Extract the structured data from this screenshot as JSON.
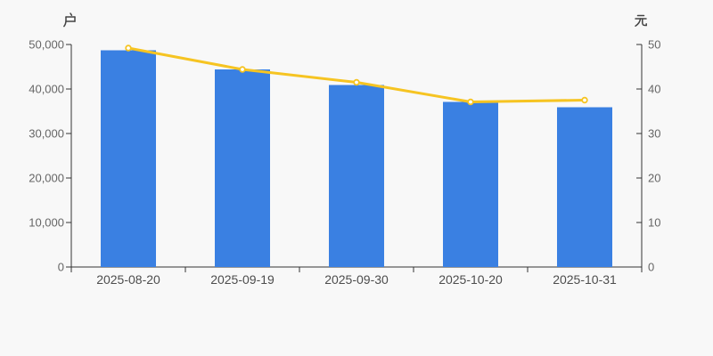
{
  "chart_data": {
    "type": "bar",
    "categories": [
      "2025-08-20",
      "2025-09-19",
      "2025-09-30",
      "2025-10-20",
      "2025-10-31"
    ],
    "series": [
      {
        "name": "bar-series",
        "type": "bar",
        "y_axis": "left",
        "values": [
          48700,
          44400,
          40900,
          37100,
          35900
        ],
        "color": "#3a80e2"
      },
      {
        "name": "line-series",
        "type": "line",
        "y_axis": "right",
        "values": [
          49.2,
          44.4,
          41.5,
          37.1,
          37.5
        ],
        "color": "#f6c422",
        "marker_fill": "#ffffff"
      }
    ],
    "left_axis": {
      "unit": "户",
      "min": 0,
      "max": 50000,
      "ticks": [
        "0",
        "10,000",
        "20,000",
        "30,000",
        "40,000",
        "50,000"
      ]
    },
    "right_axis": {
      "unit": "元",
      "min": 0,
      "max": 50,
      "ticks": [
        "0",
        "10",
        "20",
        "30",
        "40",
        "50"
      ]
    },
    "legend": "none",
    "grid": "off",
    "colors": {
      "background": "#f8f8f8",
      "axis_line": "#333333",
      "y_tick_label": "#666666",
      "x_tick_label": "#4d4d4d",
      "unit_label": "#444444"
    }
  }
}
